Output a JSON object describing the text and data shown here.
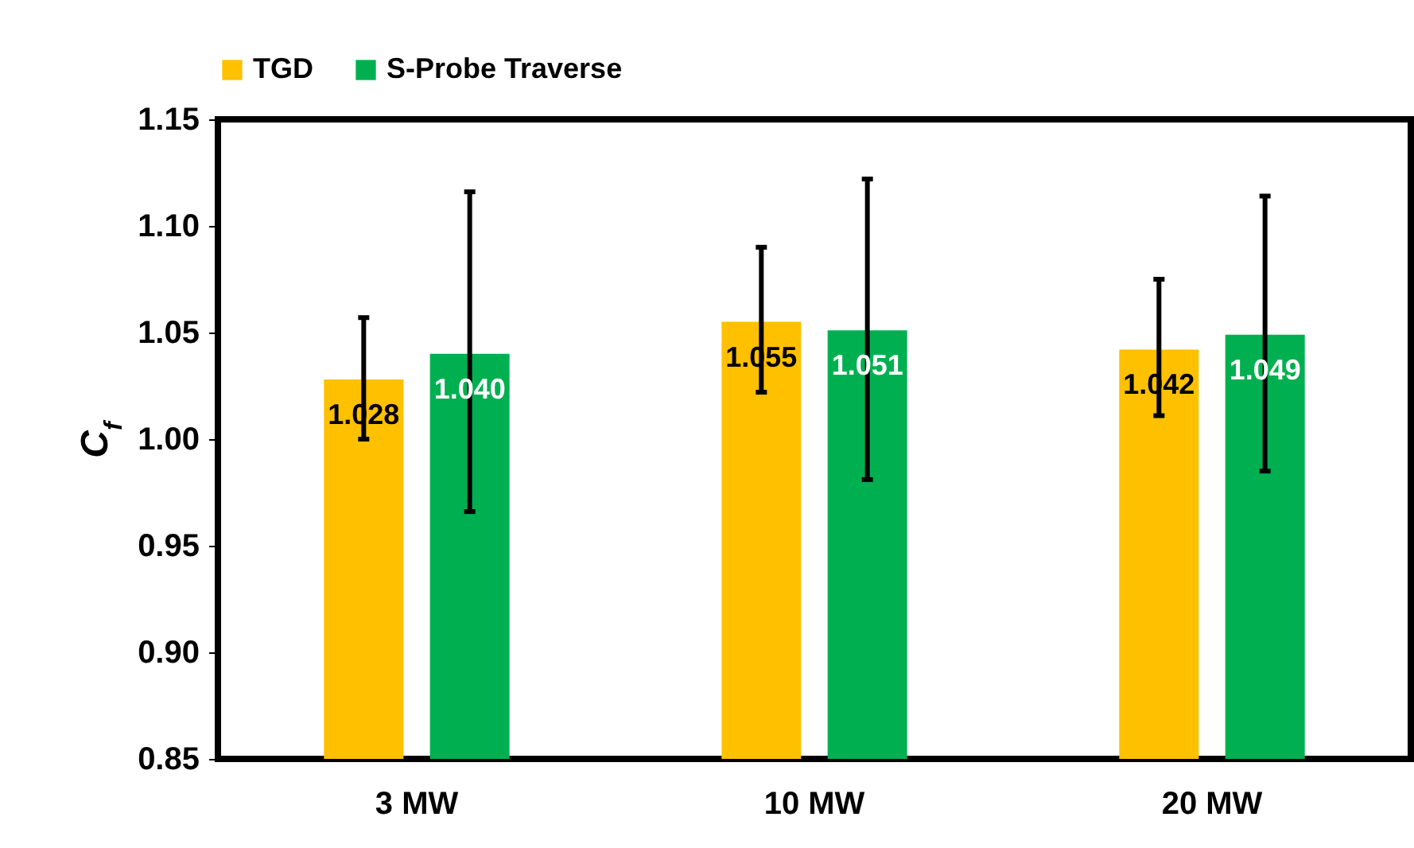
{
  "chart_data": {
    "type": "bar",
    "ylabel": "C$_{f}$",
    "categories": [
      "3 MW",
      "10 MW",
      "20 MW"
    ],
    "series": [
      {
        "name": "TGD",
        "color": "#ffc000",
        "values": [
          1.028,
          1.055,
          1.042
        ],
        "value_labels": [
          "1.028",
          "1.055",
          "1.042"
        ],
        "errors": [
          [
            1.0,
            1.057
          ],
          [
            1.022,
            1.09
          ],
          [
            1.011,
            1.075
          ]
        ]
      },
      {
        "name": "S-Probe Traverse",
        "color": "#00b050",
        "values": [
          1.04,
          1.051,
          1.049
        ],
        "value_labels": [
          "1.040",
          "1.051",
          "1.049"
        ],
        "errors": [
          [
            0.966,
            1.116
          ],
          [
            0.981,
            1.122
          ],
          [
            0.985,
            1.114
          ]
        ]
      }
    ],
    "ylim": [
      0.85,
      1.15
    ],
    "yticks": [
      0.85,
      {
        "value": 0.9,
        "label": "0.90"
      },
      0.95,
      {
        "value": 1.0,
        "label": "1.00"
      },
      1.05,
      {
        "value": 1.1,
        "label": "1.10"
      },
      1.15
    ],
    "legend": "top",
    "grid": false
  }
}
